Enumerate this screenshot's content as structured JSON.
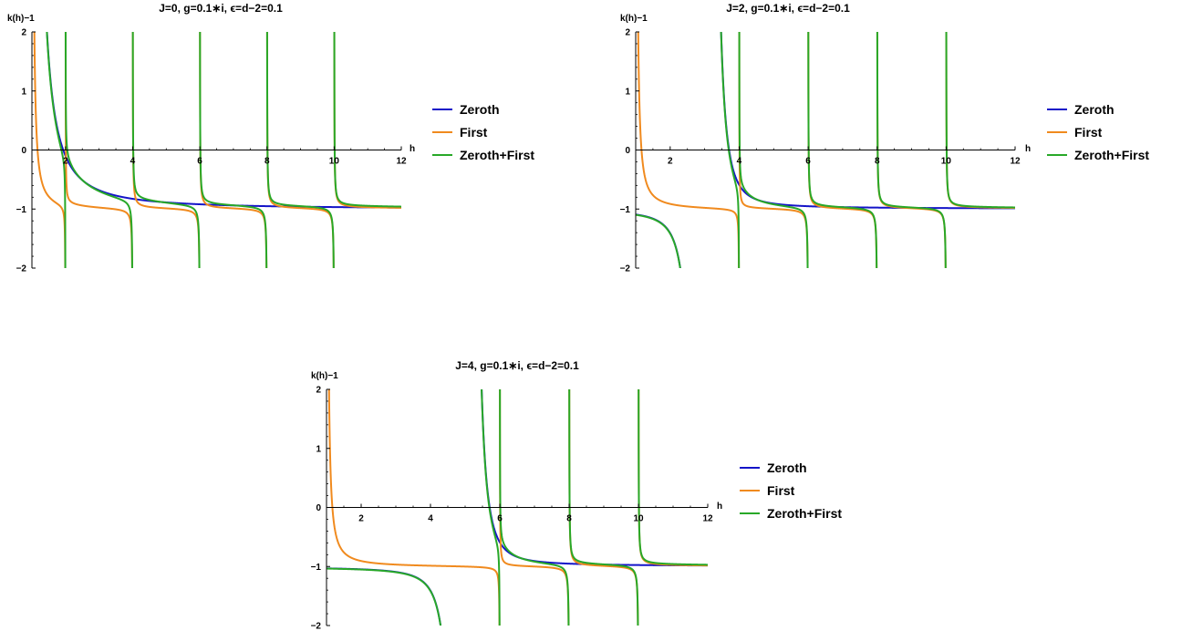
{
  "colors": {
    "zeroth": "#1414c8",
    "first": "#f08a1e",
    "sum": "#28a828",
    "axis": "#000000"
  },
  "chart_data": [
    {
      "type": "line",
      "title": "J=0, g=0.1∗i, ϵ=d−2=0.1",
      "xlabel": "h",
      "ylabel": "k(h)−1",
      "xlim": [
        1,
        12
      ],
      "ylim": [
        -2,
        2
      ],
      "xticks": [
        "2",
        "4",
        "6",
        "8",
        "10",
        "12"
      ],
      "yticks": [
        "−2",
        "−1",
        "0",
        "1",
        "2"
      ],
      "legend": "right",
      "J": 0,
      "series": [
        {
          "name": "Zeroth",
          "color": "#1414c8"
        },
        {
          "name": "First",
          "color": "#f08a1e"
        },
        {
          "name": "Zeroth+First",
          "color": "#28a828"
        }
      ]
    },
    {
      "type": "line",
      "title": "J=2, g=0.1∗i, ϵ=d−2=0.1",
      "xlabel": "h",
      "ylabel": "k(h)−1",
      "xlim": [
        1,
        12
      ],
      "ylim": [
        -2,
        2
      ],
      "xticks": [
        "2",
        "4",
        "6",
        "8",
        "10",
        "12"
      ],
      "yticks": [
        "−2",
        "−1",
        "0",
        "1",
        "2"
      ],
      "legend": "right",
      "J": 2,
      "series": [
        {
          "name": "Zeroth",
          "color": "#1414c8"
        },
        {
          "name": "First",
          "color": "#f08a1e"
        },
        {
          "name": "Zeroth+First",
          "color": "#28a828"
        }
      ]
    },
    {
      "type": "line",
      "title": "J=4, g=0.1∗i, ϵ=d−2=0.1",
      "xlabel": "h",
      "ylabel": "k(h)−1",
      "xlim": [
        1,
        12
      ],
      "ylim": [
        -2,
        2
      ],
      "xticks": [
        "2",
        "4",
        "6",
        "8",
        "10",
        "12"
      ],
      "yticks": [
        "−2",
        "−1",
        "0",
        "1",
        "2"
      ],
      "legend": "right",
      "J": 4,
      "series": [
        {
          "name": "Zeroth",
          "color": "#1414c8"
        },
        {
          "name": "First",
          "color": "#f08a1e"
        },
        {
          "name": "Zeroth+First",
          "color": "#28a828"
        }
      ]
    }
  ]
}
